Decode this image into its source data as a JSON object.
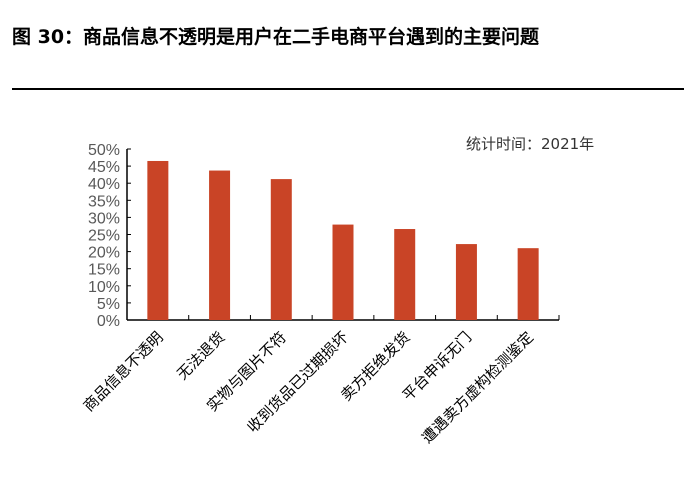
{
  "title": "图 30：商品信息不透明是用户在二手电商平台遇到的主要问题",
  "note": "统计时间：2021年",
  "chart_data": {
    "type": "bar",
    "categories": [
      "商品信息不透明",
      "无法退货",
      "实物与图片不符",
      "收到货品已过期损坏",
      "卖方拒绝发货",
      "平台申诉无门",
      "遭遇卖方虚构检测鉴定"
    ],
    "values": [
      46.5,
      43.7,
      41.2,
      27.9,
      26.6,
      22.2,
      21.0
    ],
    "ylim": [
      0,
      50
    ],
    "yticks": [
      "0%",
      "5%",
      "10%",
      "15%",
      "20%",
      "25%",
      "30%",
      "35%",
      "40%",
      "45%",
      "50%"
    ],
    "bar_color": "#C94426",
    "grid": false
  }
}
